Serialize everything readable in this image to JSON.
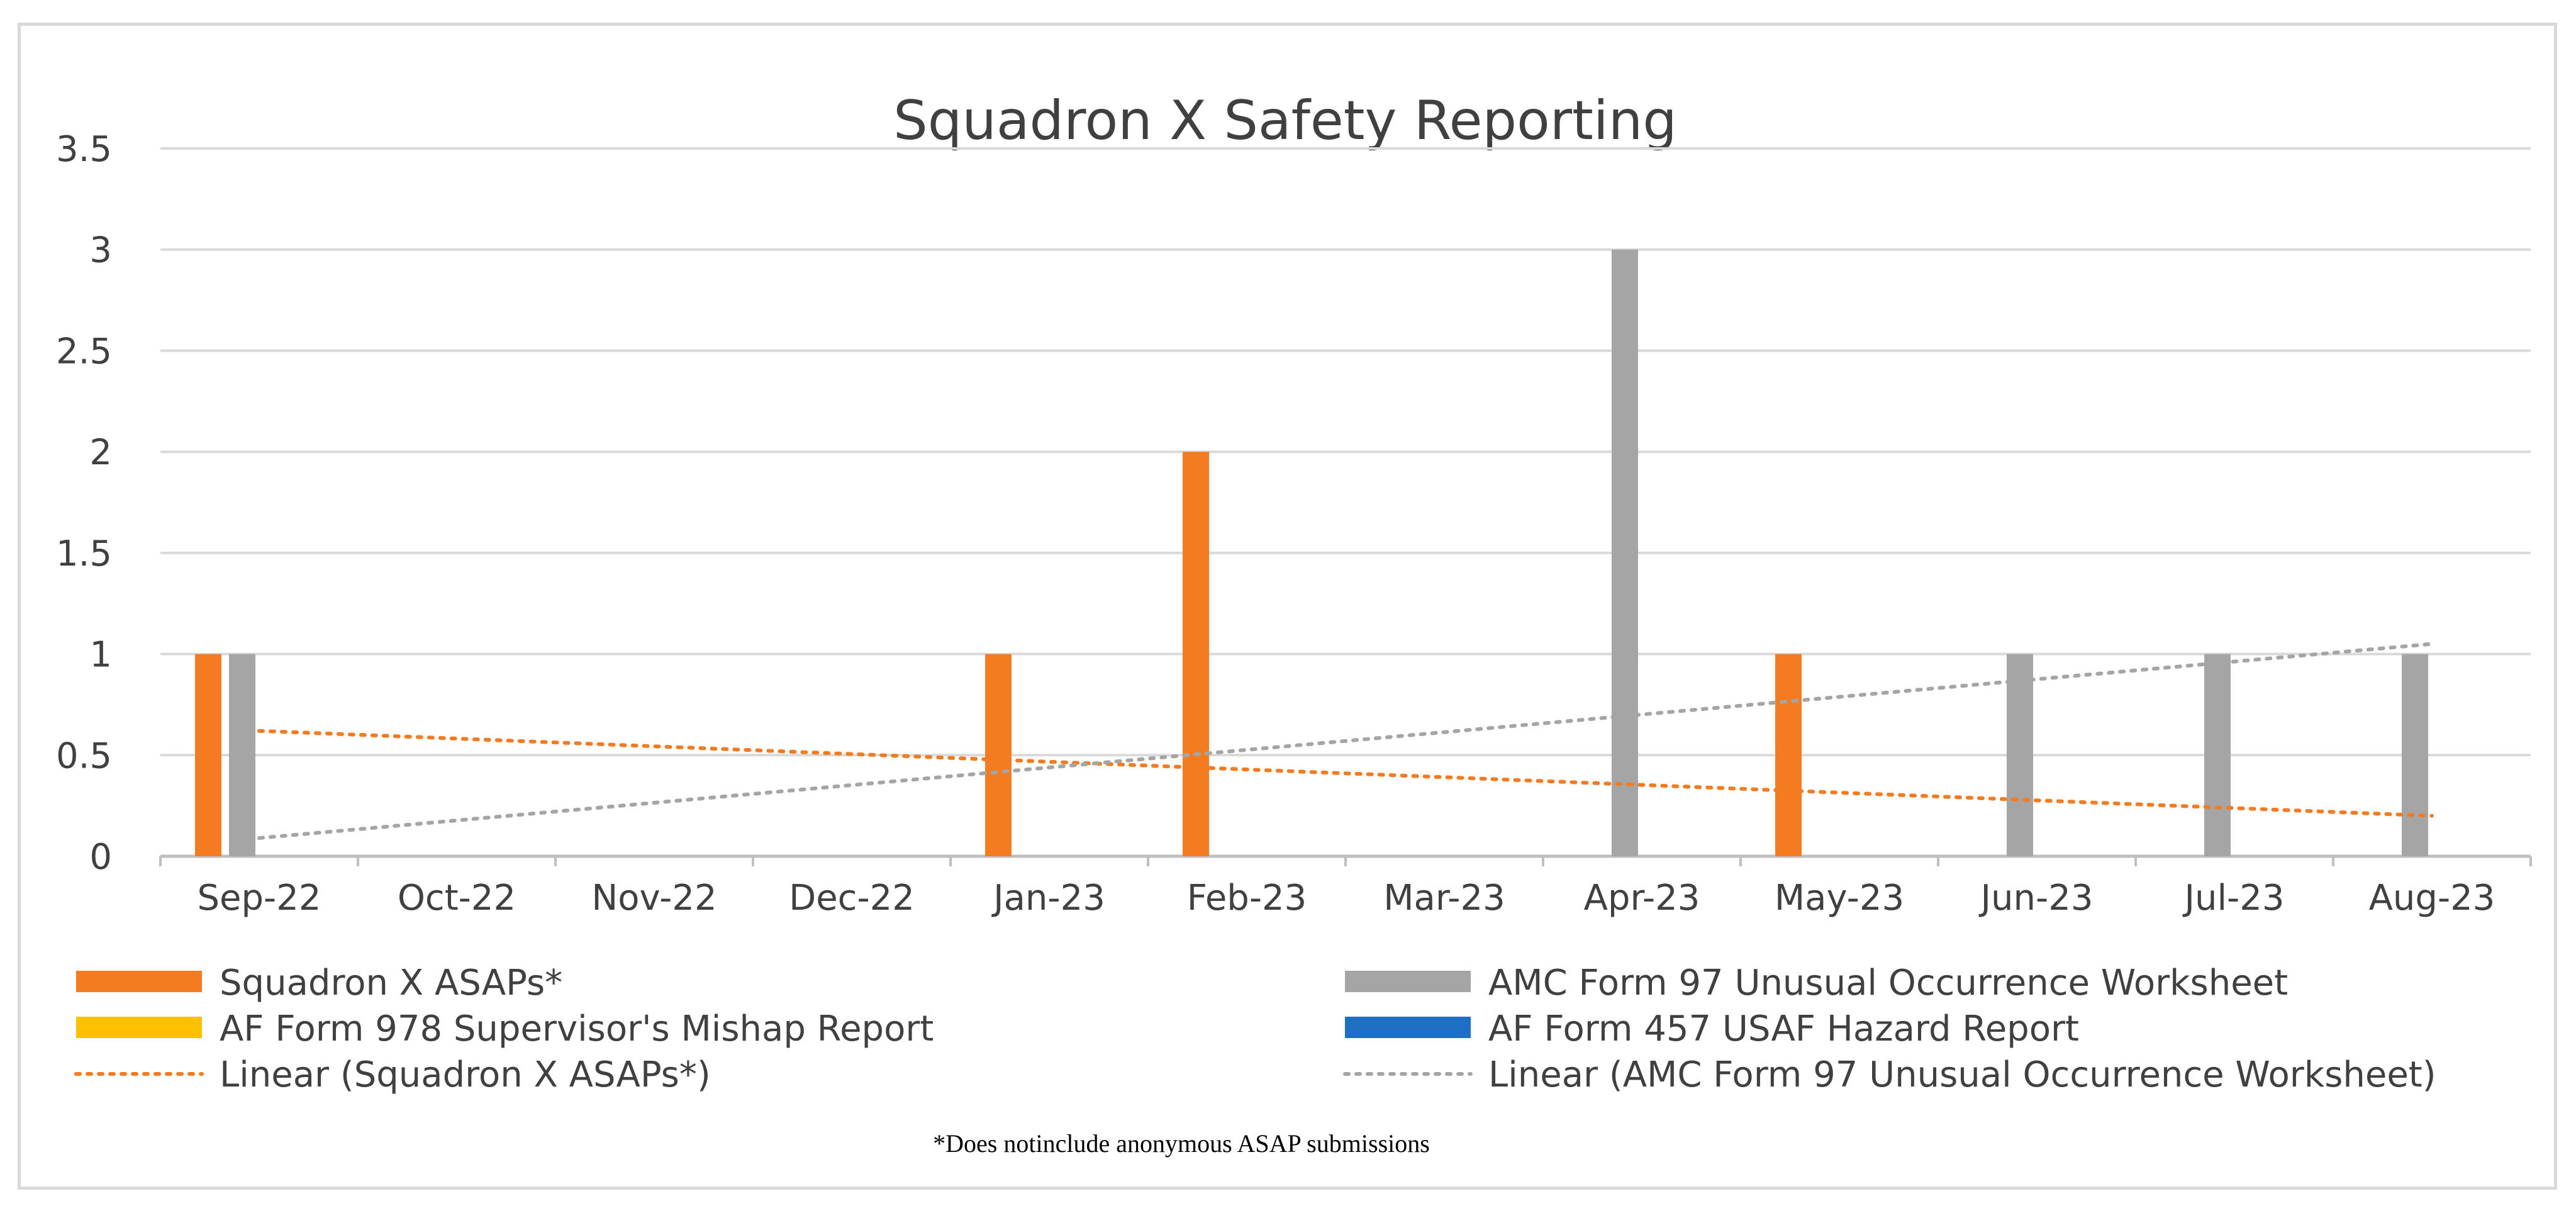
{
  "chart_data": {
    "type": "bar",
    "title": "Squadron X Safety Reporting",
    "categories": [
      "Sep-22",
      "Oct-22",
      "Nov-22",
      "Dec-22",
      "Jan-23",
      "Feb-23",
      "Mar-23",
      "Apr-23",
      "May-23",
      "Jun-23",
      "Jul-23",
      "Aug-23"
    ],
    "ylim": [
      0,
      3.5
    ],
    "yticks": [
      "0",
      "0.5",
      "1",
      "1.5",
      "2",
      "2.5",
      "3",
      "3.5"
    ],
    "grid": true,
    "series": [
      {
        "name": "Squadron X ASAPs*",
        "color": "#f47b20",
        "values": [
          1,
          0,
          0,
          0,
          1,
          2,
          0,
          0,
          1,
          0,
          0,
          0
        ]
      },
      {
        "name": "AMC Form 97 Unusual Occurrence Worksheet",
        "color": "#a5a5a5",
        "values": [
          1,
          0,
          0,
          0,
          0,
          0,
          0,
          3,
          0,
          1,
          1,
          1
        ]
      },
      {
        "name": "AF Form 978 Supervisor's Mishap Report",
        "color": "#ffc000",
        "values": [
          0,
          0,
          0,
          0,
          0,
          0,
          0,
          0,
          0,
          0,
          0,
          0
        ]
      },
      {
        "name": "AF Form 457 USAF Hazard Report",
        "color": "#1f6fc5",
        "values": [
          0,
          0,
          0,
          0,
          0,
          0,
          0,
          0,
          0,
          0,
          0,
          0
        ]
      }
    ],
    "trendlines": [
      {
        "name": "Linear (Squadron X ASAPs*)",
        "color": "#f47b20",
        "start": 0.62,
        "end": 0.2
      },
      {
        "name": "Linear (AMC Form 97 Unusual Occurrence Worksheet)",
        "color": "#a5a5a5",
        "start": 0.09,
        "end": 1.05
      }
    ],
    "footnote": "*Does notinclude anonymous ASAP submissions"
  }
}
